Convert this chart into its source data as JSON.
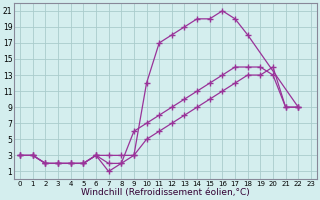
{
  "background_color": "#d4eeee",
  "grid_color": "#aacccc",
  "line_color": "#993399",
  "marker": "+",
  "markersize": 4,
  "linewidth": 0.9,
  "xlabel": "Windchill (Refroidissement éolien,°C)",
  "xlabel_fontsize": 6.5,
  "ytick_labels": [
    "1",
    "3",
    "5",
    "7",
    "9",
    "11",
    "13",
    "15",
    "17",
    "19",
    "21"
  ],
  "ytick_values": [
    1,
    3,
    5,
    7,
    9,
    11,
    13,
    15,
    17,
    19,
    21
  ],
  "xtick_labels": [
    "0",
    "1",
    "2",
    "3",
    "4",
    "5",
    "6",
    "7",
    "8",
    "9",
    "10",
    "11",
    "12",
    "13",
    "14",
    "15",
    "16",
    "17",
    "18",
    "19",
    "20",
    "21",
    "22",
    "23"
  ],
  "xtick_values": [
    0,
    1,
    2,
    3,
    4,
    5,
    6,
    7,
    8,
    9,
    10,
    11,
    12,
    13,
    14,
    15,
    16,
    17,
    18,
    19,
    20,
    21,
    22,
    23
  ],
  "xlim": [
    -0.5,
    23.5
  ],
  "ylim": [
    0,
    22
  ],
  "line1_x": [
    0,
    1,
    2,
    3,
    4,
    5,
    6,
    7,
    8,
    9,
    10,
    11,
    12,
    13,
    14,
    15,
    16,
    17,
    18,
    22
  ],
  "line1_y": [
    3,
    3,
    2,
    2,
    2,
    2,
    3,
    3,
    3,
    3,
    12,
    17,
    18,
    19,
    20,
    20,
    21,
    20,
    18,
    9
  ],
  "line2_x": [
    0,
    1,
    2,
    3,
    4,
    5,
    6,
    7,
    8,
    9,
    10,
    11,
    12,
    13,
    14,
    15,
    16,
    17,
    18,
    19,
    20,
    21,
    22
  ],
  "line2_y": [
    3,
    3,
    2,
    2,
    2,
    2,
    3,
    2,
    2,
    3,
    5,
    6,
    7,
    8,
    9,
    10,
    11,
    12,
    13,
    13,
    14,
    9,
    9
  ],
  "line3_x": [
    0,
    1,
    2,
    3,
    4,
    5,
    6,
    7,
    8,
    9,
    10,
    11,
    12,
    13,
    14,
    15,
    16,
    17,
    18,
    19,
    20,
    21,
    22
  ],
  "line3_y": [
    3,
    3,
    2,
    2,
    2,
    2,
    3,
    1,
    2,
    6,
    7,
    8,
    9,
    10,
    11,
    12,
    13,
    14,
    14,
    14,
    13,
    9,
    9
  ]
}
